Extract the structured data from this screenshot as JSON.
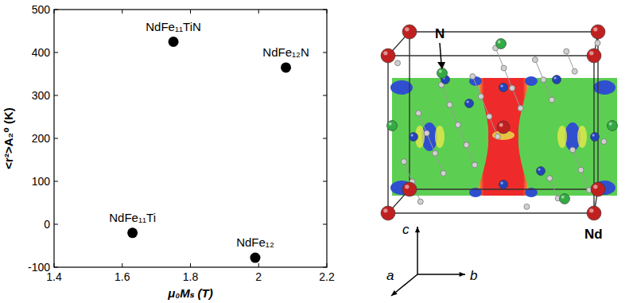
{
  "chart_data": {
    "type": "scatter",
    "x_label": "μ₀Mₛ (T)",
    "y_label": "<r²>A₂⁰ (K)",
    "x": [
      1.75,
      2.08,
      1.63,
      1.99
    ],
    "values": [
      425,
      365,
      -20,
      -78
    ],
    "labels": [
      "NdFe₁₁TiN",
      "NdFe₁₂N",
      "NdFe₁₁Ti",
      "NdFe₁₂"
    ],
    "color": "#000000",
    "marker": "circle",
    "xlim": [
      1.4,
      2.2
    ],
    "xticks": [
      1.4,
      1.6,
      1.8,
      2,
      2.2
    ],
    "ylim": [
      -100,
      500
    ],
    "yticks": [
      -100,
      0,
      100,
      200,
      300,
      400,
      500
    ],
    "grid": false
  },
  "diagram": {
    "labels": {
      "nitrogen": "N",
      "neodymium": "Nd"
    },
    "axes": {
      "a": "a",
      "b": "b",
      "c": "c"
    }
  }
}
